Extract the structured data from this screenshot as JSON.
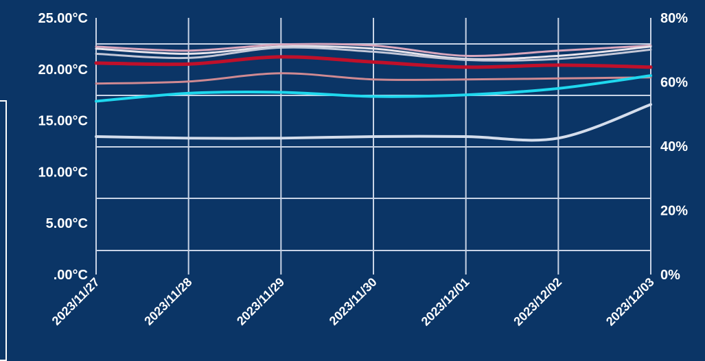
{
  "chart_data": {
    "type": "line",
    "title": "",
    "xlabel": "",
    "ylabel": "",
    "ylabel_right": "",
    "categories": [
      "2023/11/27",
      "2023/11/28",
      "2023/11/29",
      "2023/11/30",
      "2023/12/01",
      "2023/12/02",
      "2023/12/03"
    ],
    "y_left": {
      "min": 0,
      "max": 25,
      "ticks": [
        ".00°C",
        "5.00°C",
        "10.00°C",
        "15.00°C",
        "20.00°C",
        "25.00°C"
      ]
    },
    "y_right": {
      "min": 0,
      "max": 80,
      "ticks": [
        "0%",
        "20%",
        "40%",
        "60%",
        "80%"
      ]
    },
    "grid": true,
    "legend": "none",
    "series": [
      {
        "axis": "left",
        "color": "#d9a7bd",
        "width": 3,
        "values": [
          22.2,
          21.8,
          22.4,
          22.3,
          21.3,
          21.8,
          22.3
        ]
      },
      {
        "axis": "left",
        "color": "#e8e4ec",
        "width": 3,
        "values": [
          22.0,
          21.5,
          22.2,
          22.0,
          21.0,
          21.3,
          22.2
        ]
      },
      {
        "axis": "left",
        "color": "#c4c8d8",
        "width": 3,
        "values": [
          21.5,
          21.1,
          22.1,
          21.7,
          20.9,
          21.0,
          21.9
        ]
      },
      {
        "axis": "left",
        "color": "#c0102a",
        "width": 5,
        "values": [
          20.6,
          20.5,
          21.2,
          20.7,
          20.2,
          20.4,
          20.2
        ]
      },
      {
        "axis": "left",
        "color": "#cf8a92",
        "width": 3,
        "values": [
          18.6,
          18.8,
          19.6,
          19.0,
          19.0,
          19.1,
          19.2
        ]
      },
      {
        "axis": "right",
        "color": "#1fd8ee",
        "width": 4,
        "values": [
          54,
          56.5,
          56.8,
          55.5,
          56,
          58,
          62
        ]
      },
      {
        "axis": "right",
        "color": "#d4ddec",
        "width": 4,
        "values": [
          43,
          42.5,
          42.5,
          43,
          43,
          42.5,
          53
        ]
      }
    ]
  }
}
